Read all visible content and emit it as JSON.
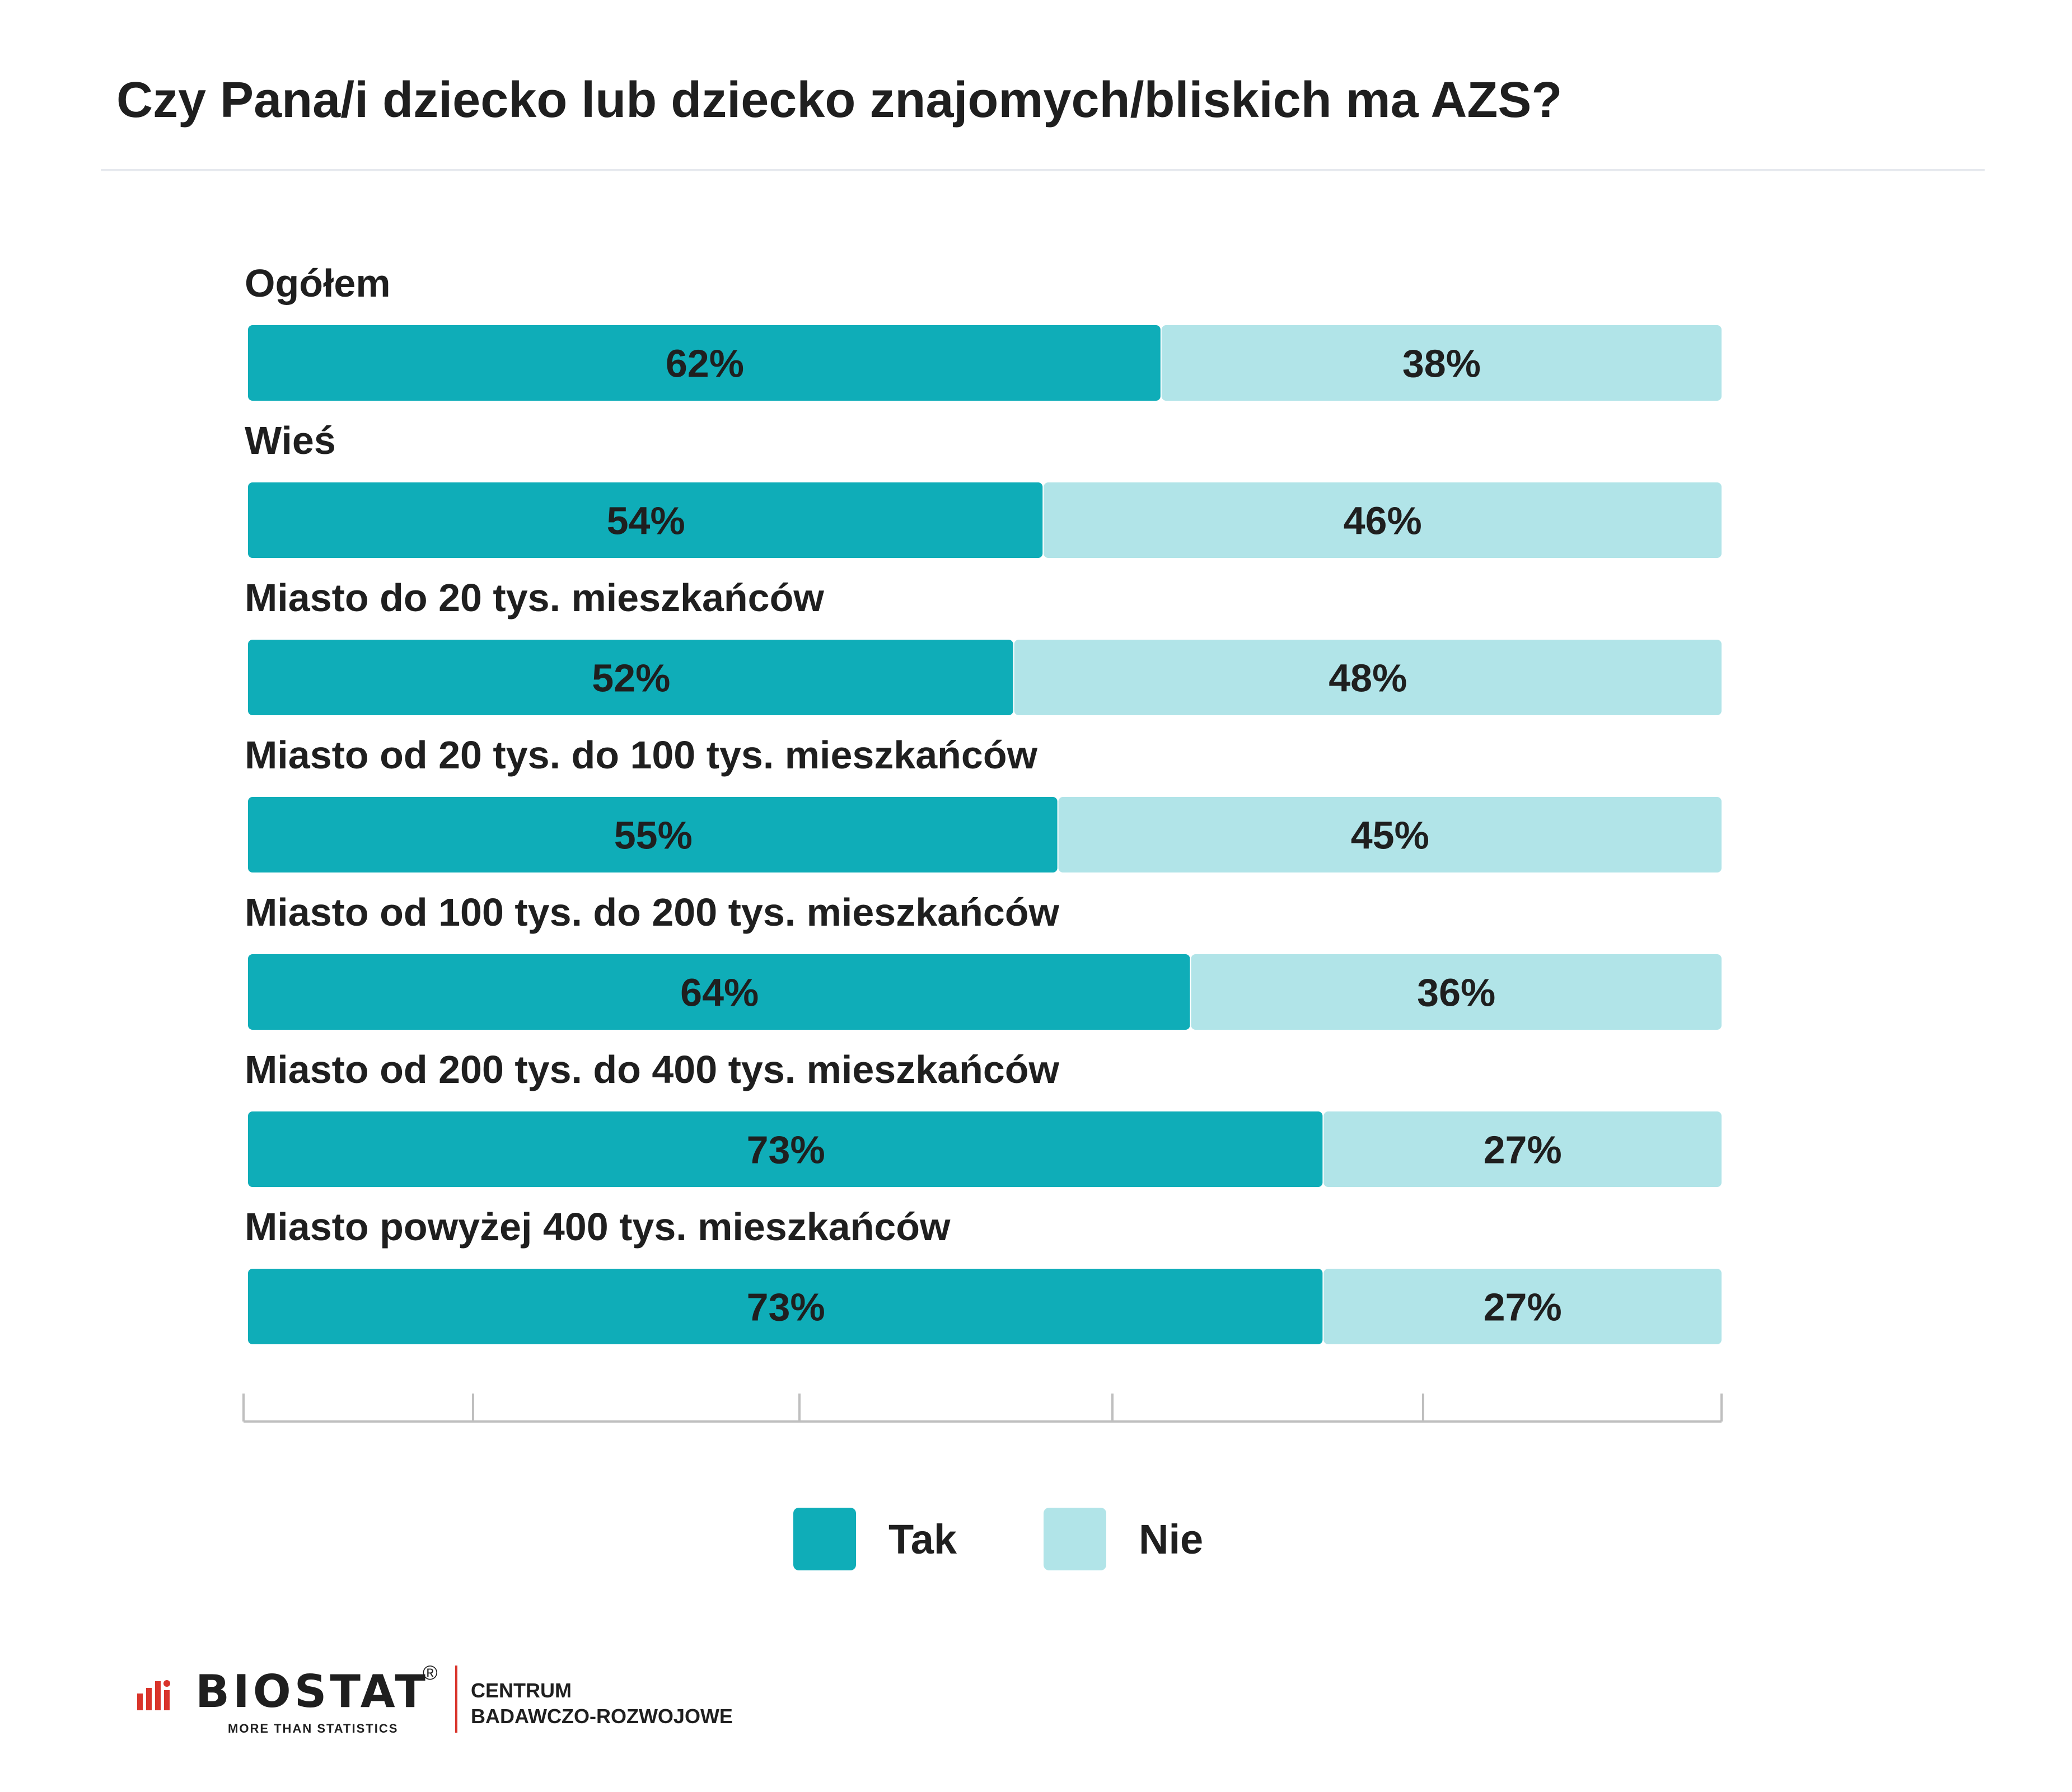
{
  "chart_data": {
    "type": "bar",
    "orientation": "horizontal",
    "stacked": true,
    "title": "Czy Pana/i dziecko lub dziecko znajomych/bliskich ma AZS?",
    "categories": [
      "Ogółem",
      "Wieś",
      "Miasto do 20 tys. mieszkańców",
      "Miasto od 20 tys. do 100 tys. mieszkańców",
      "Miasto od 100 tys. do 200 tys. mieszkańców",
      "Miasto od 200 tys. do 400 tys. mieszkańców",
      "Miasto powyżej 400 tys. mieszkańców"
    ],
    "series": [
      {
        "name": "Tak",
        "color": "#0fadb8",
        "values": [
          62,
          54,
          52,
          55,
          64,
          73,
          73
        ]
      },
      {
        "name": "Nie",
        "color": "#b1e4e8",
        "values": [
          38,
          46,
          48,
          45,
          36,
          27,
          27
        ]
      }
    ],
    "value_suffix": "%",
    "xlim": [
      0,
      100
    ],
    "legend_position": "bottom-center",
    "grid": false
  },
  "footer": {
    "logo_word": "BIOSTAT",
    "logo_registered": "®",
    "logo_tagline": "MORE THAN STATISTICS",
    "side_line1": "CENTRUM",
    "side_line2": "BADAWCZO-ROZWOJOWE",
    "accent_color": "#d9342b"
  }
}
